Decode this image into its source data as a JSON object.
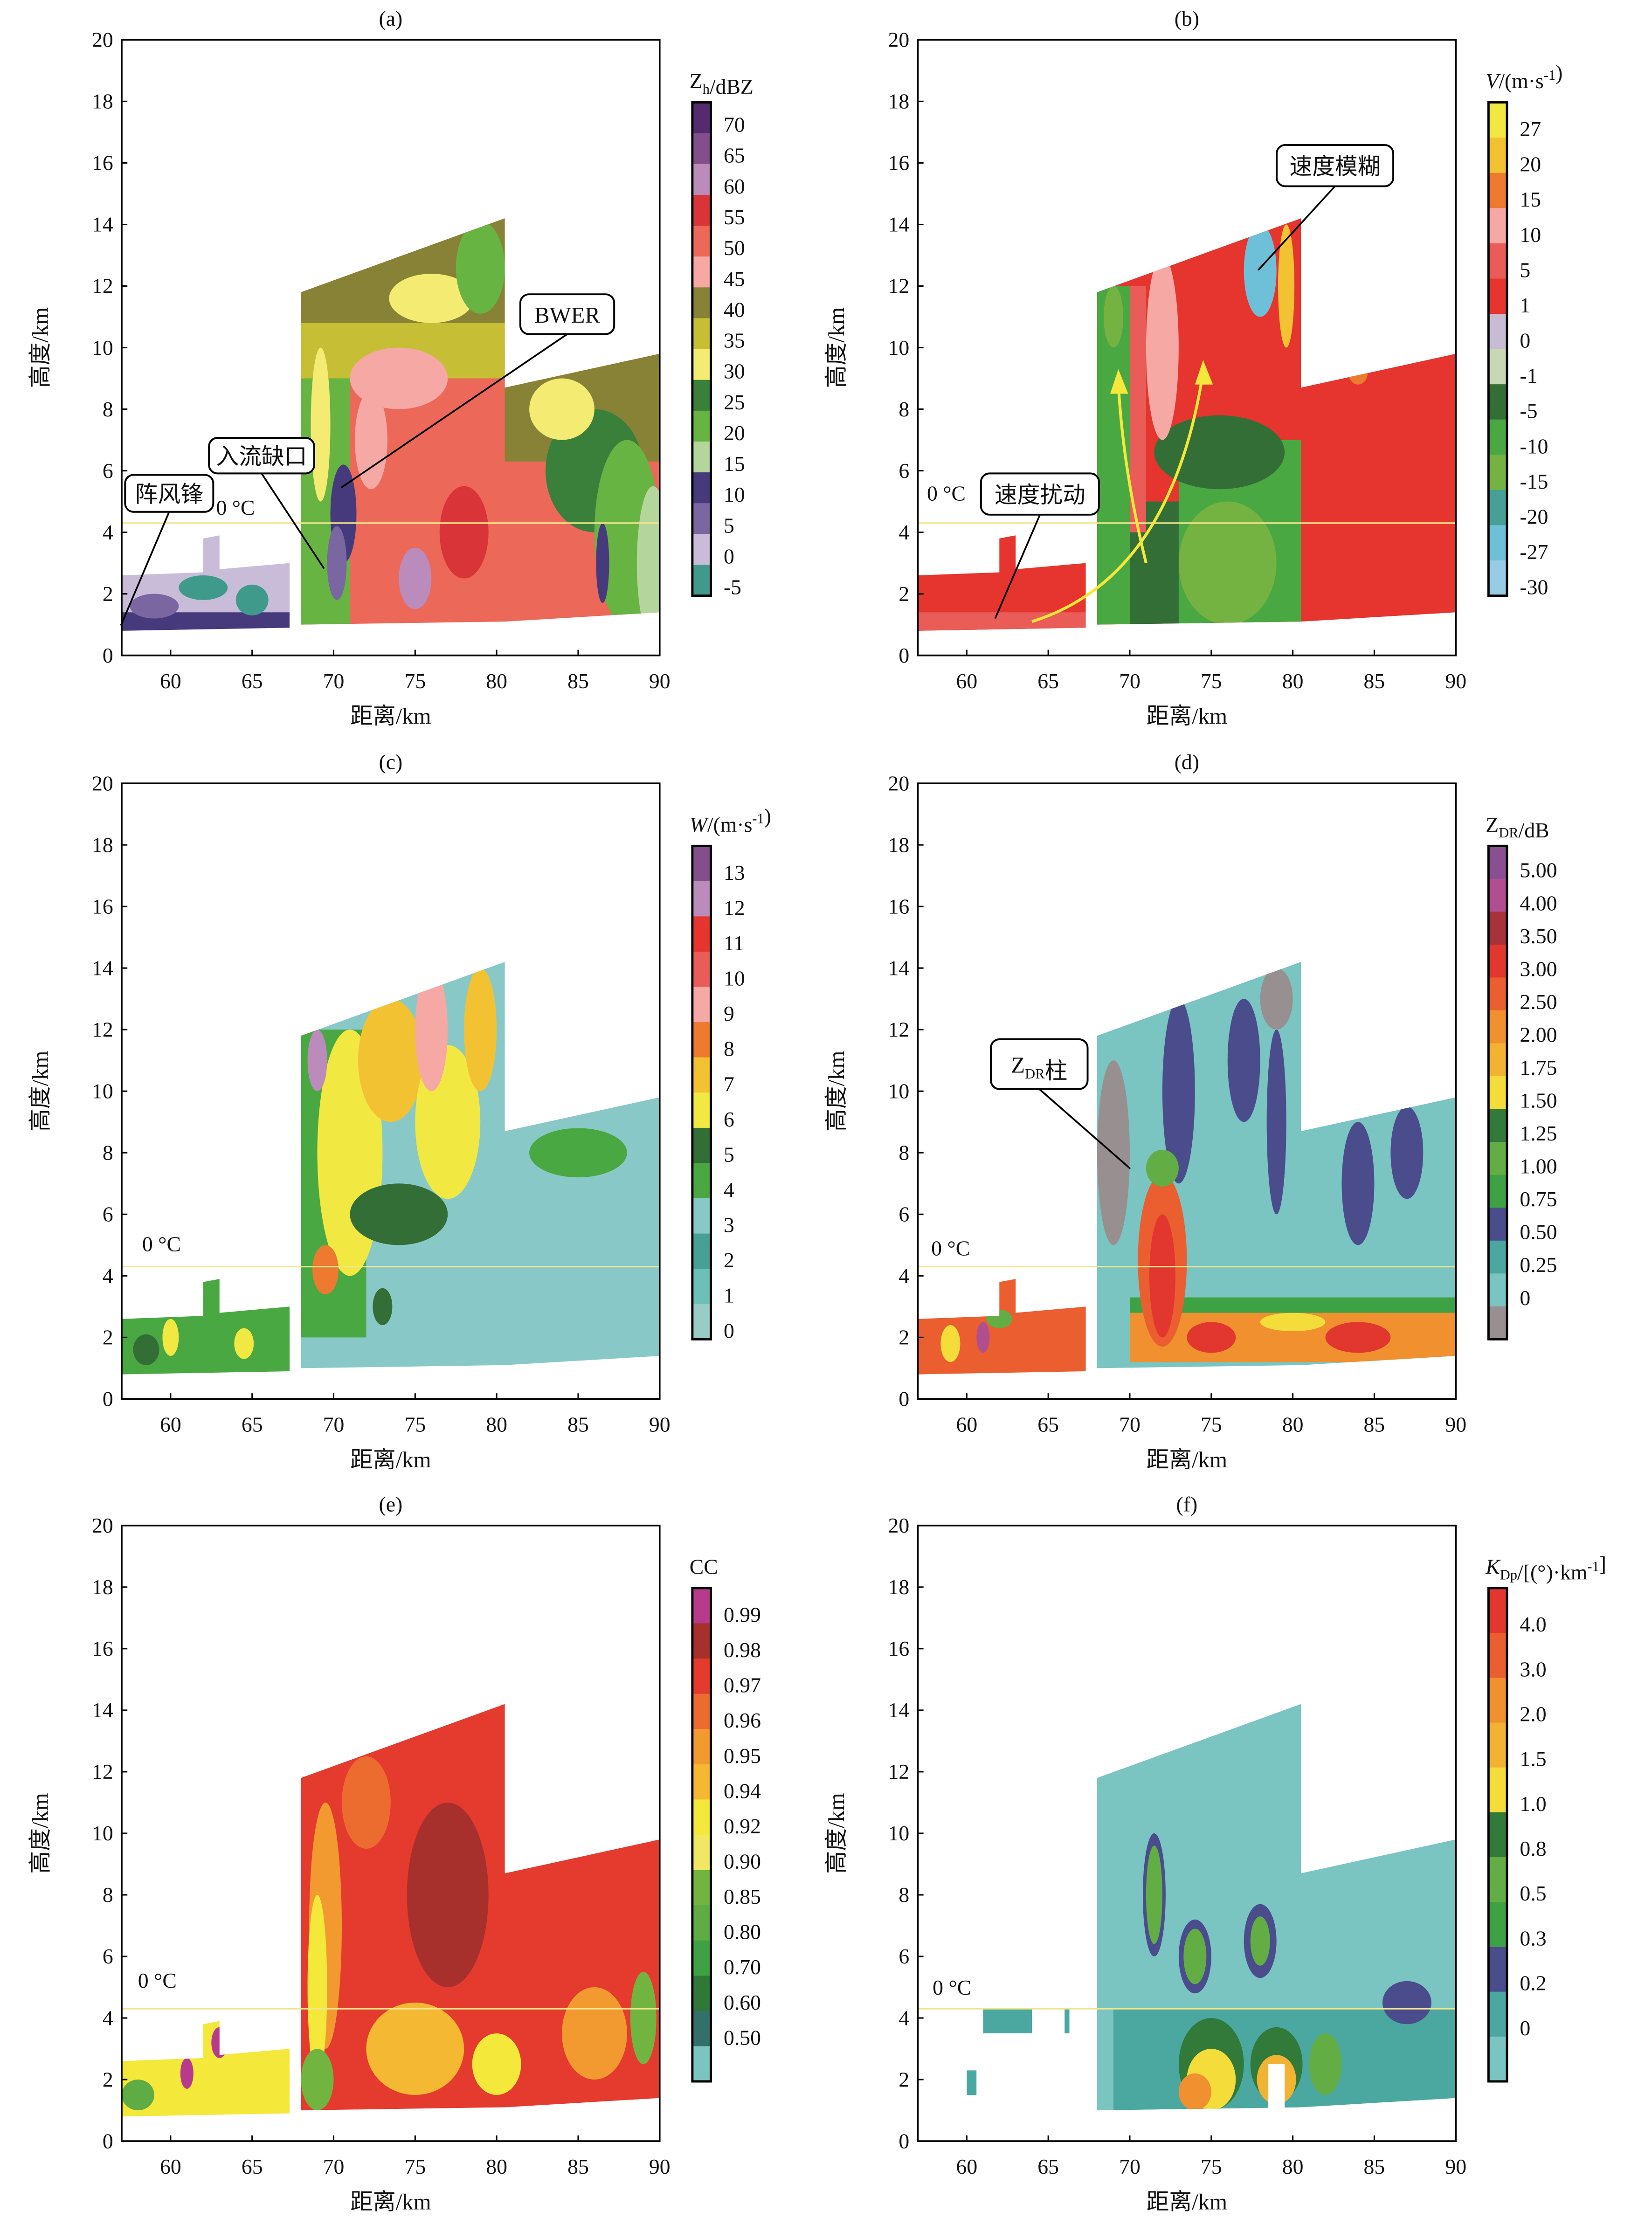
{
  "figure": {
    "xlabel": "距离/km",
    "ylabel": "高度/km",
    "xlim": [
      57,
      90
    ],
    "ylim": [
      0,
      20
    ],
    "xticks": [
      60,
      65,
      70,
      75,
      80,
      85,
      90
    ],
    "yticks": [
      0,
      2,
      4,
      6,
      8,
      10,
      12,
      14,
      16,
      18,
      20
    ],
    "freezing_label": "0 °C",
    "freezing_level_km": 4.3,
    "freezing_line_color": "#f0e68c",
    "arrow_color": "#f5e83a"
  },
  "chart_data": [
    {
      "type": "heatmap",
      "panel_label": "(a)",
      "colorbar": {
        "title": [
          {
            "t": "Z"
          },
          {
            "t": "h",
            "s": "sub"
          },
          {
            "t": "/dBZ"
          }
        ],
        "ticks": [
          "70",
          "65",
          "60",
          "55",
          "50",
          "45",
          "40",
          "35",
          "30",
          "25",
          "20",
          "15",
          "10",
          "5",
          "0",
          "-5"
        ],
        "colors": [
          "#552a6e",
          "#844d8c",
          "#bb8bbb",
          "#d93438",
          "#ec6858",
          "#f6a8a4",
          "#878236",
          "#c6be34",
          "#f4ec72",
          "#3a803a",
          "#68b443",
          "#b4d69c",
          "#463a7c",
          "#7a66a0",
          "#c8bcd8",
          "#3f9a8c"
        ]
      },
      "annotations": [
        [
          {
            "t": "阵风锋"
          }
        ],
        [
          {
            "t": "入流缺口"
          }
        ],
        [
          {
            "t": "BWER"
          }
        ]
      ]
    },
    {
      "type": "heatmap",
      "panel_label": "(b)",
      "colorbar": {
        "title": [
          {
            "t": "V",
            "s": "i"
          },
          {
            "t": "/(m·s"
          },
          {
            "t": "-1",
            "s": "sup"
          },
          {
            "t": ")"
          }
        ],
        "ticks": [
          "27",
          "20",
          "15",
          "10",
          "5",
          "1",
          "0",
          "-1",
          "-5",
          "-10",
          "-15",
          "-20",
          "-27",
          "-30"
        ],
        "colors": [
          "#f2e842",
          "#f2c232",
          "#ee7a30",
          "#f6a8a4",
          "#ea5c58",
          "#e5352e",
          "#c8bcd4",
          "#c8d8b4",
          "#336e36",
          "#4aa842",
          "#74b242",
          "#46a096",
          "#6ec0d8",
          "#98cce4"
        ]
      },
      "annotations": [
        [
          {
            "t": "速度模糊"
          }
        ],
        [
          {
            "t": "速度扰动"
          }
        ]
      ]
    },
    {
      "type": "heatmap",
      "panel_label": "(c)",
      "colorbar": {
        "title": [
          {
            "t": "W",
            "s": "i"
          },
          {
            "t": "/(m·s"
          },
          {
            "t": "-1",
            "s": "sup"
          },
          {
            "t": ")"
          }
        ],
        "ticks": [
          "13",
          "12",
          "11",
          "10",
          "9",
          "8",
          "7",
          "6",
          "5",
          "4",
          "3",
          "2",
          "1",
          "0"
        ],
        "colors": [
          "#844d8c",
          "#bb8bbb",
          "#e5352e",
          "#ea5c58",
          "#f6a8a4",
          "#ee7a30",
          "#f2c232",
          "#f2e842",
          "#336e36",
          "#4aa842",
          "#88c9c8",
          "#46a096",
          "#6cc0b8",
          "#98ccc4"
        ]
      },
      "annotations": []
    },
    {
      "type": "heatmap",
      "panel_label": "(d)",
      "colorbar": {
        "title": [
          {
            "t": "Z"
          },
          {
            "t": "DR",
            "s": "sub"
          },
          {
            "t": "/dB"
          }
        ],
        "ticks": [
          "5.00",
          "4.00",
          "3.50",
          "3.00",
          "2.50",
          "2.00",
          "1.75",
          "1.50",
          "1.25",
          "1.00",
          "0.75",
          "0.50",
          "0.25",
          "0"
        ],
        "colors": [
          "#8a4f90",
          "#b04e90",
          "#a8323a",
          "#e2372e",
          "#ea5e30",
          "#f0902e",
          "#f2b232",
          "#f4dc3a",
          "#327a3a",
          "#62ae44",
          "#3ea244",
          "#4a4c8c",
          "#4aa8a0",
          "#7ac4c2",
          "#989090"
        ]
      },
      "annotations": [
        [
          {
            "t": "Z"
          },
          {
            "t": "DR",
            "s": "sub"
          },
          {
            "t": "柱"
          }
        ]
      ]
    },
    {
      "type": "heatmap",
      "panel_label": "(e)",
      "colorbar": {
        "title": [
          {
            "t": "CC"
          }
        ],
        "ticks": [
          "0.99",
          "0.98",
          "0.97",
          "0.96",
          "0.95",
          "0.94",
          "0.92",
          "0.90",
          "0.85",
          "0.80",
          "0.70",
          "0.60",
          "0.50"
        ],
        "colors": [
          "#b83a8c",
          "#a8302c",
          "#e53a2e",
          "#ec6c30",
          "#f29a30",
          "#f4b832",
          "#f4e83a",
          "#f0e862",
          "#72b440",
          "#60ac44",
          "#3ea244",
          "#307838",
          "#34706a",
          "#7ac4c2"
        ]
      },
      "annotations": []
    },
    {
      "type": "heatmap",
      "panel_label": "(f)",
      "colorbar": {
        "title": [
          {
            "t": "K",
            "s": "i"
          },
          {
            "t": "Dp",
            "s": "sub"
          },
          {
            "t": "/[(°)·km"
          },
          {
            "t": "-1",
            "s": "sup"
          },
          {
            "t": "]"
          }
        ],
        "ticks": [
          "4.0",
          "3.0",
          "2.0",
          "1.5",
          "1.0",
          "0.8",
          "0.5",
          "0.3",
          "0.2",
          "0"
        ],
        "colors": [
          "#e2372e",
          "#ea5e30",
          "#f0902e",
          "#f2b232",
          "#f4dc3a",
          "#327a3a",
          "#62ae44",
          "#3ea244",
          "#4a4c8c",
          "#4aa8a0",
          "#7ac4c2"
        ]
      },
      "annotations": []
    }
  ]
}
